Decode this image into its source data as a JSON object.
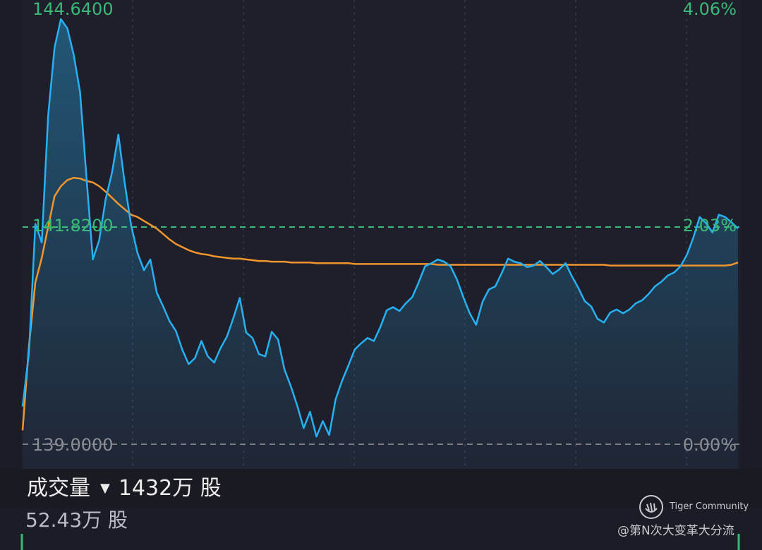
{
  "chart_data": {
    "type": "line",
    "price_ticks": {
      "high": "144.6400",
      "prev_close": "141.8200",
      "low": "139.0000"
    },
    "percent_ticks": {
      "high": "4.06%",
      "prev_close": "2.03%",
      "low": "0.00%"
    },
    "ylim": [
      139.0,
      144.64
    ],
    "reference_line": 141.82,
    "grid": true,
    "colors": {
      "price": "#26b1f2",
      "average": "#f0962d",
      "reference": "#3dbb79",
      "grid": "#3a3a48",
      "baseline": "#7d7d86"
    },
    "series": [
      {
        "values": [
          139.49,
          140.19,
          141.86,
          141.62,
          143.26,
          144.15,
          144.52,
          144.4,
          144.06,
          143.57,
          142.47,
          141.4,
          141.65,
          142.18,
          142.53,
          143.02,
          142.38,
          141.84,
          141.48,
          141.26,
          141.4,
          140.97,
          140.79,
          140.6,
          140.47,
          140.23,
          140.04,
          140.12,
          140.34,
          140.14,
          140.06,
          140.25,
          140.4,
          140.64,
          140.9,
          140.45,
          140.38,
          140.17,
          140.14,
          140.46,
          140.36,
          139.97,
          139.75,
          139.5,
          139.21,
          139.42,
          139.1,
          139.3,
          139.12,
          139.58,
          139.82,
          140.02,
          140.23,
          140.31,
          140.38,
          140.34,
          140.52,
          140.74,
          140.78,
          140.73,
          140.83,
          140.91,
          141.1,
          141.31,
          141.35,
          141.4,
          141.37,
          141.31,
          141.14,
          140.91,
          140.7,
          140.55,
          140.85,
          141.01,
          141.05,
          141.22,
          141.41,
          141.37,
          141.35,
          141.3,
          141.32,
          141.38,
          141.3,
          141.21,
          141.27,
          141.35,
          141.18,
          141.03,
          140.86,
          140.79,
          140.63,
          140.58,
          140.71,
          140.75,
          140.7,
          140.75,
          140.83,
          140.87,
          140.95,
          141.05,
          141.11,
          141.19,
          141.23,
          141.31,
          141.46,
          141.68,
          141.95,
          141.87,
          141.75,
          141.98,
          141.95,
          141.88,
          141.8
        ]
      },
      {
        "values": [
          139.18,
          140.28,
          141.1,
          141.42,
          141.82,
          142.22,
          142.35,
          142.43,
          142.46,
          142.45,
          142.42,
          142.4,
          142.35,
          142.28,
          142.2,
          142.12,
          142.05,
          141.98,
          141.95,
          141.9,
          141.85,
          141.8,
          141.73,
          141.66,
          141.6,
          141.56,
          141.52,
          141.49,
          141.47,
          141.46,
          141.44,
          141.43,
          141.42,
          141.41,
          141.41,
          141.4,
          141.39,
          141.38,
          141.38,
          141.37,
          141.37,
          141.37,
          141.36,
          141.36,
          141.36,
          141.36,
          141.35,
          141.35,
          141.35,
          141.35,
          141.35,
          141.35,
          141.34,
          141.34,
          141.34,
          141.34,
          141.34,
          141.34,
          141.34,
          141.34,
          141.34,
          141.34,
          141.34,
          141.34,
          141.34,
          141.33,
          141.33,
          141.33,
          141.33,
          141.33,
          141.33,
          141.33,
          141.33,
          141.33,
          141.33,
          141.33,
          141.33,
          141.33,
          141.33,
          141.33,
          141.33,
          141.33,
          141.33,
          141.33,
          141.33,
          141.33,
          141.33,
          141.33,
          141.33,
          141.33,
          141.33,
          141.33,
          141.32,
          141.32,
          141.32,
          141.32,
          141.32,
          141.32,
          141.32,
          141.32,
          141.32,
          141.32,
          141.32,
          141.32,
          141.32,
          141.32,
          141.32,
          141.32,
          141.32,
          141.32,
          141.32,
          141.33,
          141.36
        ]
      }
    ]
  },
  "volume": {
    "label": "成交量",
    "total": "1432万 股",
    "latest": "52.43万 股"
  },
  "watermark": {
    "brand": "Tiger Community",
    "handle": "@第N次大变革大分流"
  }
}
